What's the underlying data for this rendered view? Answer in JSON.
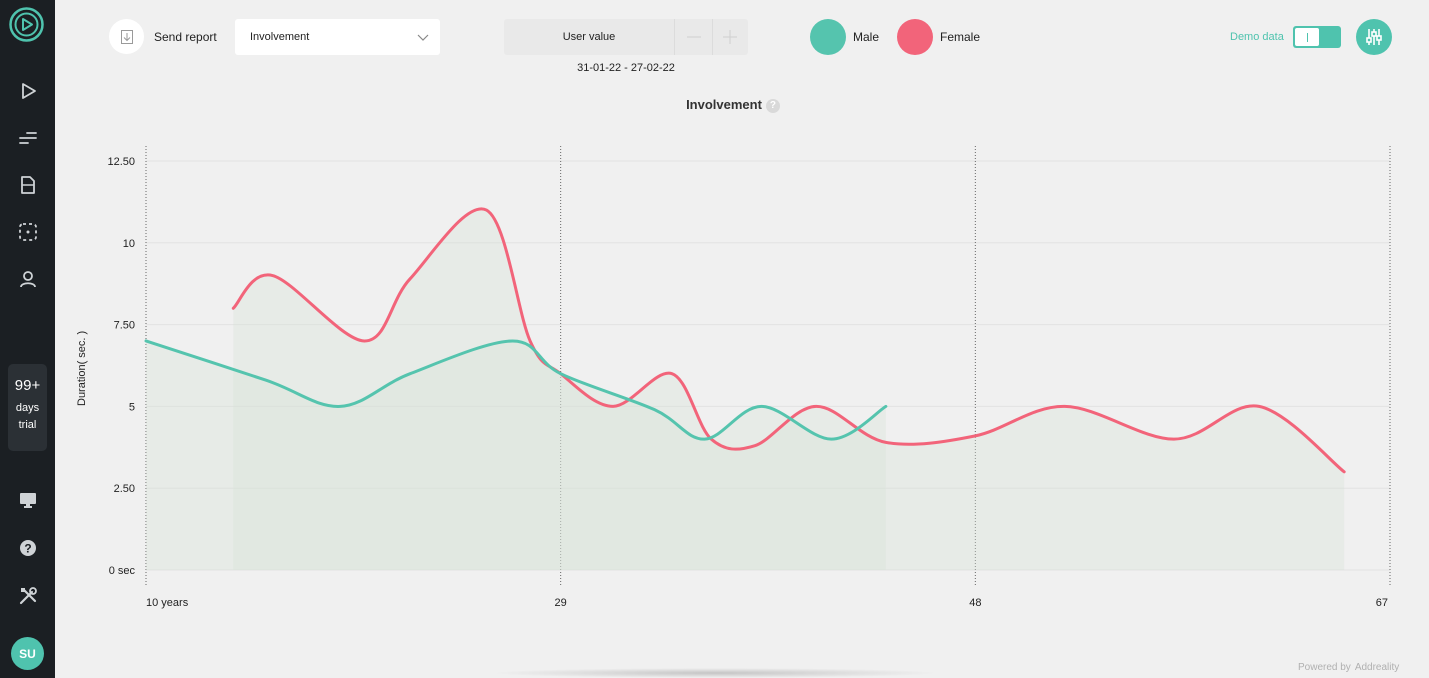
{
  "sidebar": {
    "logo_icon": "addreality-logo-icon",
    "items": [
      {
        "icon": "play-icon"
      },
      {
        "icon": "list-icon"
      },
      {
        "icon": "file-icon"
      },
      {
        "icon": "dashed-square-icon"
      },
      {
        "icon": "user-icon"
      }
    ],
    "trial": {
      "count": "99+",
      "line1": "days",
      "line2": "trial"
    },
    "bottom_items": [
      {
        "icon": "monitor-icon"
      },
      {
        "icon": "help-icon"
      },
      {
        "icon": "tools-icon"
      }
    ],
    "avatar": "SU"
  },
  "toolbar": {
    "send_report": "Send report",
    "metric_select": "Involvement",
    "user_value_label": "User value",
    "date_range": "31-01-22 - 27-02-22",
    "legend": [
      {
        "name": "Male",
        "color": "#55c4ae"
      },
      {
        "name": "Female",
        "color": "#f2647a"
      }
    ],
    "demo_data_label": "Demo data",
    "demo_data_on": true
  },
  "footer": {
    "powered_by": "Powered by",
    "brand": "Addreality"
  },
  "chart_data": {
    "type": "line",
    "title": "Involvement",
    "ylabel": "Duration( sec. )",
    "xlabel": "",
    "ylim": [
      0,
      12.5
    ],
    "xlim": [
      10,
      67
    ],
    "y_ticks": [
      "0 sec",
      "2.50",
      "5",
      "7.50",
      "10",
      "12.50"
    ],
    "y_tick_values": [
      0,
      2.5,
      5,
      7.5,
      10,
      12.5
    ],
    "x_ticks": [
      "10 years",
      "29",
      "48",
      "67"
    ],
    "x_tick_values": [
      10,
      29,
      48,
      67
    ],
    "series": [
      {
        "name": "Male",
        "color": "#55c4ae",
        "points": [
          [
            10,
            7.0
          ],
          [
            15.5,
            5.8
          ],
          [
            18.9,
            5.0
          ],
          [
            22.1,
            6.0
          ],
          [
            26.8,
            7.0
          ],
          [
            29,
            6.0
          ],
          [
            33.3,
            4.9
          ],
          [
            35.6,
            4.0
          ],
          [
            38.2,
            5.0
          ],
          [
            41.4,
            4.0
          ],
          [
            43.9,
            5.0
          ]
        ]
      },
      {
        "name": "Female",
        "color": "#f2647a",
        "points": [
          [
            14,
            8.0
          ],
          [
            15.8,
            9.0
          ],
          [
            20,
            7.0
          ],
          [
            22.1,
            8.9
          ],
          [
            25.6,
            11.0
          ],
          [
            27.6,
            7.0
          ],
          [
            29,
            6.0
          ],
          [
            31.4,
            5.0
          ],
          [
            34.1,
            6.0
          ],
          [
            35.9,
            4.0
          ],
          [
            37.9,
            3.8
          ],
          [
            40.7,
            5.0
          ],
          [
            43.9,
            3.9
          ],
          [
            48,
            4.1
          ],
          [
            52.1,
            5.0
          ],
          [
            57.1,
            4.0
          ],
          [
            61,
            5.0
          ],
          [
            64.9,
            3.0
          ]
        ]
      }
    ],
    "grid": true,
    "legend_position": "top"
  }
}
